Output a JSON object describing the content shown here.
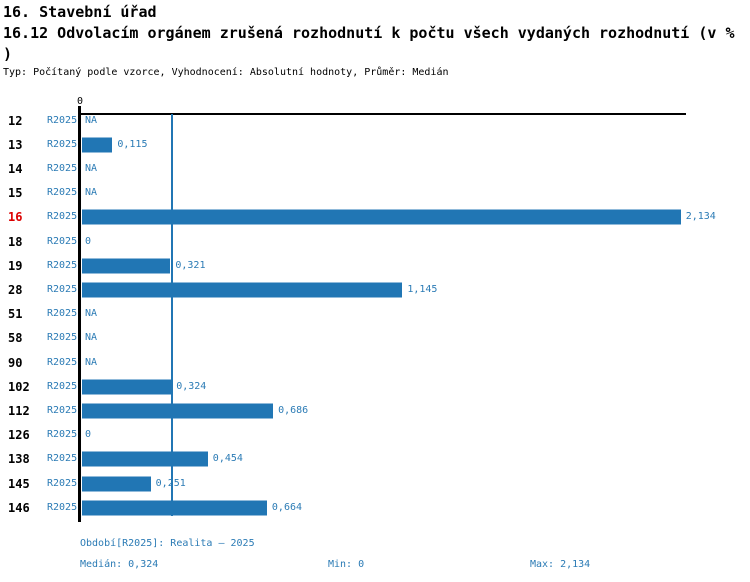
{
  "header": {
    "title": "16. Stavební úřad",
    "subtitle_line1": "16.12 Odvolacím orgánem zrušená rozhodnutí k počtu všech vydaných rozhodnutí (v %",
    "subtitle_line2": ")",
    "meta": "Typ: Počítaný podle vzorce, Vyhodnocení: Absolutní hodnoty, Průměr: Medián"
  },
  "chart_data": {
    "type": "bar",
    "orientation": "horizontal",
    "title": "16.12 Odvolacím orgánem zrušená rozhodnutí k počtu všech vydaných rozhodnutí (v % )",
    "axis_zero_label": "0",
    "period_label": "R2025",
    "categories": [
      "12",
      "13",
      "14",
      "15",
      "16",
      "18",
      "19",
      "28",
      "51",
      "58",
      "90",
      "102",
      "112",
      "126",
      "138",
      "145",
      "146"
    ],
    "values": [
      null,
      0.115,
      null,
      null,
      2.134,
      0,
      0.321,
      1.145,
      null,
      null,
      null,
      0.324,
      0.686,
      0,
      0.454,
      0.251,
      0.664
    ],
    "value_labels": [
      "NA",
      "0,115",
      "NA",
      "NA",
      "2,134",
      "0",
      "0,321",
      "1,145",
      "NA",
      "NA",
      "NA",
      "0,324",
      "0,686",
      "0",
      "0,454",
      "0,251",
      "0,664"
    ],
    "na_label": "NA",
    "highlighted_category": "16",
    "median": 0.324,
    "min": 0,
    "max": 2.134,
    "xlim": [
      0,
      2.15
    ],
    "grid": false,
    "legend_position": "none",
    "bar_color": "#2176B4",
    "text_blue_color": "#2B7BB5",
    "highlight_color": "#DC0000",
    "median_line_color": "#2176B4"
  },
  "footer": {
    "period": "Období[R2025]: Realita – 2025",
    "median": "Medián: 0,324",
    "min": "Min: 0",
    "max": "Max: 2,134"
  }
}
